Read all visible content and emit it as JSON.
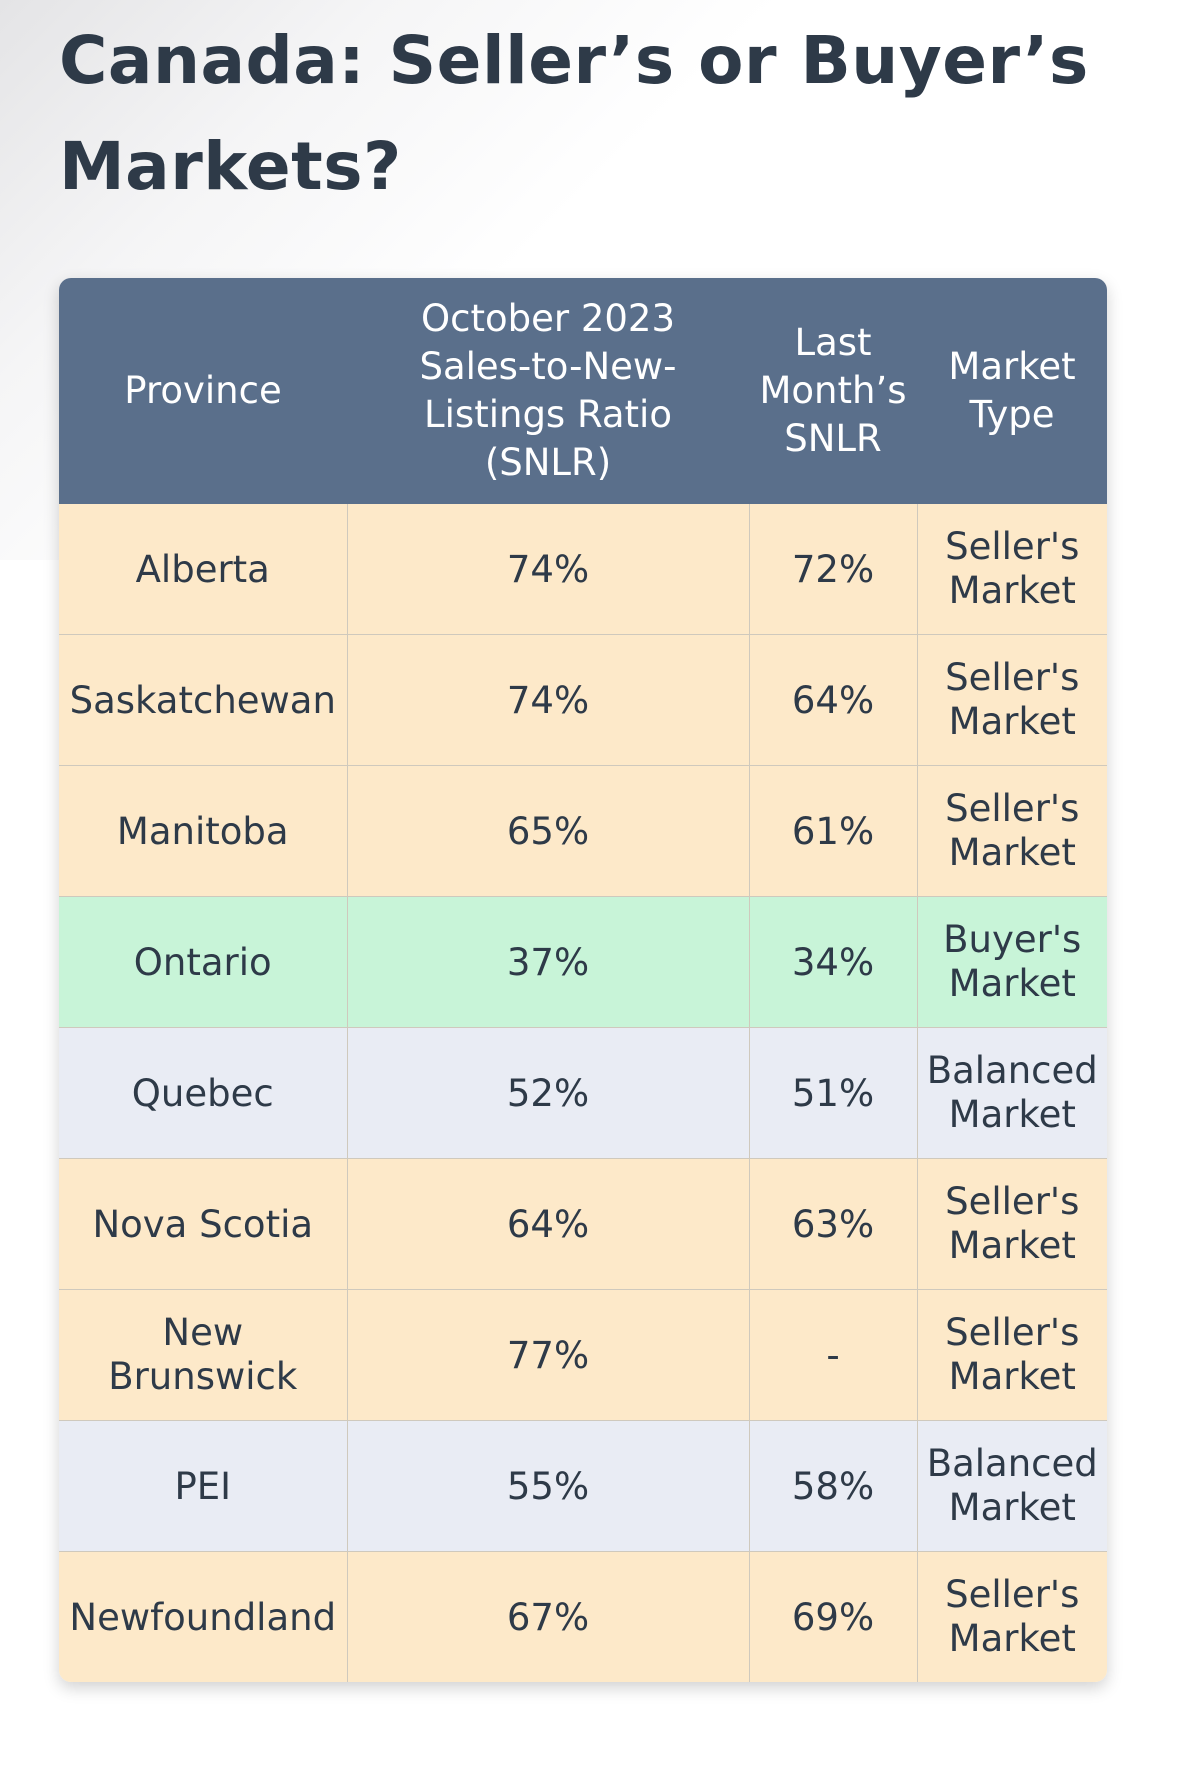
{
  "title": "Canada: Seller’s or Buyer’s Markets?",
  "table": {
    "headers": [
      "Province",
      "October 2023 Sales-to-New-Listings Ratio (SNLR)",
      "Last Month’s SNLR",
      "Market Type"
    ],
    "rows": [
      {
        "province": "Alberta",
        "snlr": "74%",
        "last": "72%",
        "type": "Seller's Market",
        "category": "seller"
      },
      {
        "province": "Saskatchewan",
        "snlr": "74%",
        "last": "64%",
        "type": "Seller's Market",
        "category": "seller"
      },
      {
        "province": "Manitoba",
        "snlr": "65%",
        "last": "61%",
        "type": "Seller's Market",
        "category": "seller"
      },
      {
        "province": "Ontario",
        "snlr": "37%",
        "last": "34%",
        "type": "Buyer's Market",
        "category": "buyer"
      },
      {
        "province": "Quebec",
        "snlr": "52%",
        "last": "51%",
        "type": "Balanced Market",
        "category": "balanced"
      },
      {
        "province": "Nova Scotia",
        "snlr": "64%",
        "last": "63%",
        "type": "Seller's Market",
        "category": "seller"
      },
      {
        "province": "New Brunswick",
        "snlr": "77%",
        "last": "-",
        "type": "Seller's Market",
        "category": "seller"
      },
      {
        "province": "PEI",
        "snlr": "55%",
        "last": "58%",
        "type": "Balanced Market",
        "category": "balanced"
      },
      {
        "province": "Newfoundland",
        "snlr": "67%",
        "last": "69%",
        "type": "Seller's Market",
        "category": "seller"
      }
    ]
  },
  "colors": {
    "header_bg": "#5a6f8b",
    "seller_row": "#fde9c9",
    "buyer_row": "#c8f4d8",
    "balanced_row": "#e9ecf4",
    "title_text": "#2e3a48"
  }
}
